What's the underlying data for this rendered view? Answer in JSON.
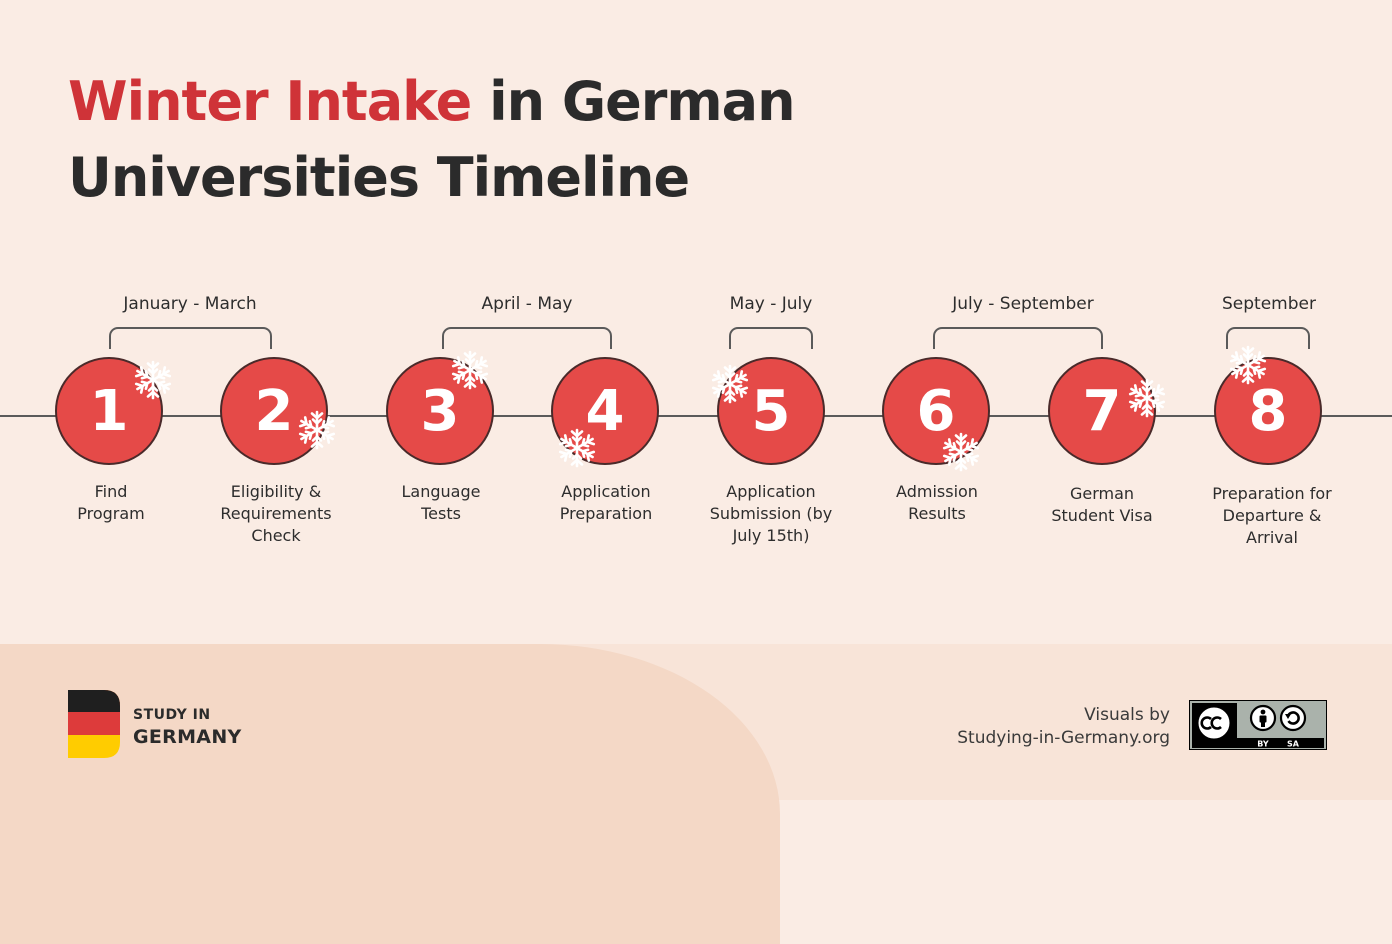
{
  "title": {
    "accent": "Winter Intake",
    "rest_line1": "in German",
    "line2": "Universities Timeline"
  },
  "periods": [
    {
      "label": "January - March"
    },
    {
      "label": "April - May"
    },
    {
      "label": "May - July"
    },
    {
      "label": "July - September"
    },
    {
      "label": "September"
    }
  ],
  "steps": [
    {
      "number": "1",
      "label": "Find Program"
    },
    {
      "number": "2",
      "label": "Eligibility & Requirements Check"
    },
    {
      "number": "3",
      "label": "Language Tests"
    },
    {
      "number": "4",
      "label": "Application Preparation"
    },
    {
      "number": "5",
      "label": "Application Submission (by July 15th)"
    },
    {
      "number": "6",
      "label": "Admission Results"
    },
    {
      "number": "7",
      "label": "German Student Visa"
    },
    {
      "number": "8",
      "label": "Preparation for Departure & Arrival"
    }
  ],
  "logo": {
    "line1": "STUDY IN",
    "line2": "GERMANY"
  },
  "credit": {
    "line1": "Visuals by",
    "line2": "Studying-in-Germany.org"
  },
  "license": {
    "by": "BY",
    "sa": "SA"
  },
  "colors": {
    "accent": "#cf3338",
    "circle": "#e54a48",
    "background": "#faece4"
  }
}
